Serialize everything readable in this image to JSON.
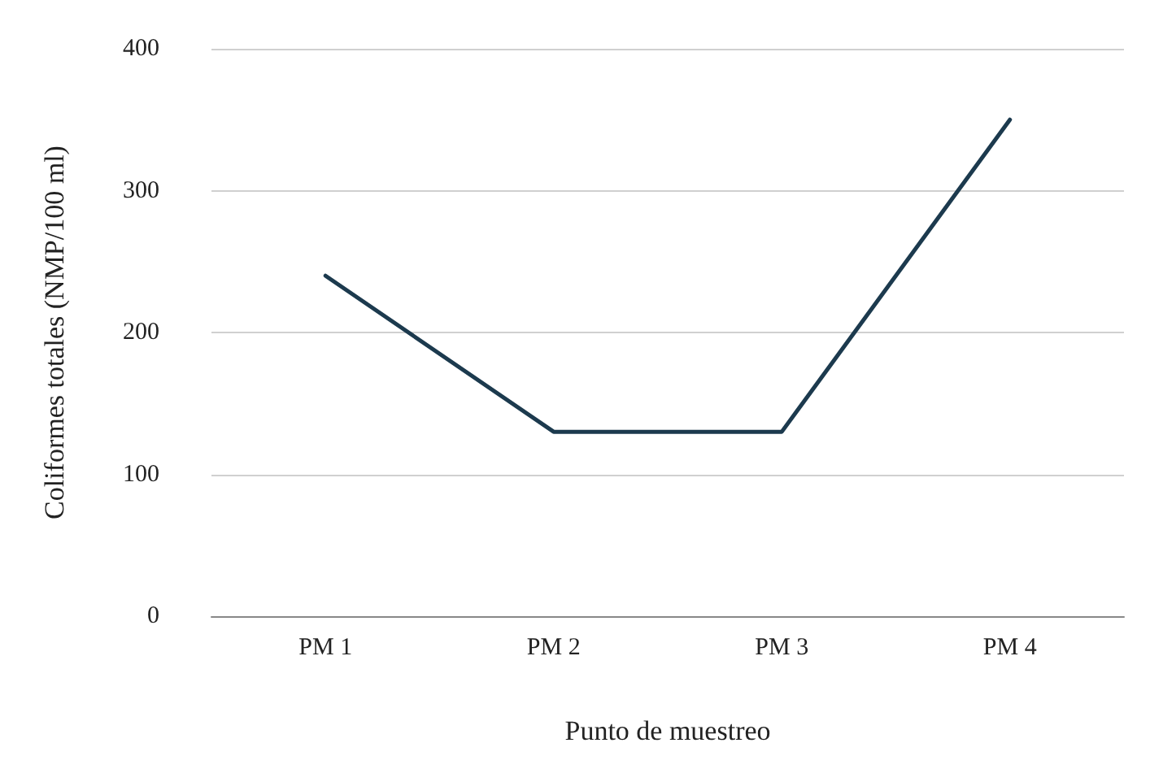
{
  "chart_data": {
    "type": "line",
    "xlabel": "Punto de muestreo",
    "ylabel": "Coliformes totales (NMP/100 ml)",
    "categories": [
      "PM 1",
      "PM 2",
      "PM 3",
      "PM 4"
    ],
    "series": [
      {
        "color": "#1c3a4e",
        "values": [
          240,
          130,
          130,
          350
        ]
      }
    ],
    "ylim": [
      0,
      400
    ],
    "yticks": [
      0,
      100,
      200,
      300,
      400
    ],
    "grid": "y",
    "marker": "none",
    "line_style": "solid"
  }
}
